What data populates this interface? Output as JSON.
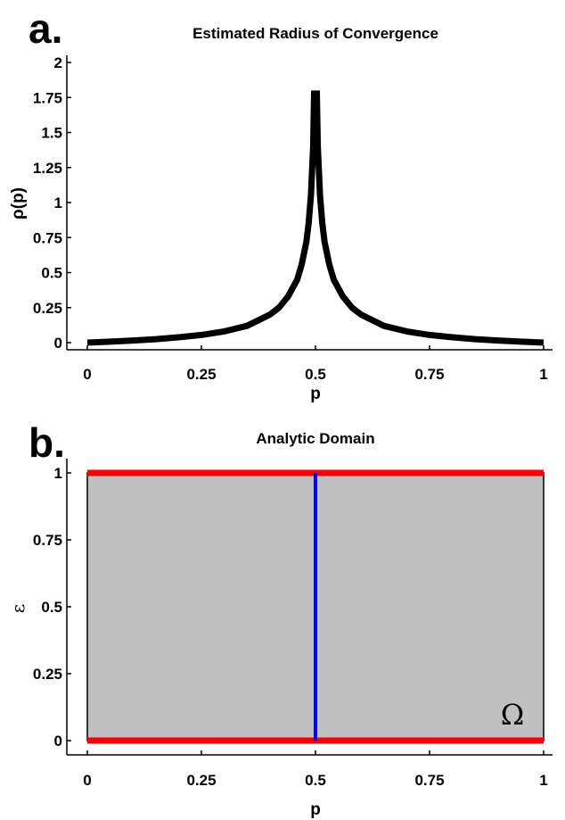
{
  "chart_data": [
    {
      "panel": "a.",
      "type": "line",
      "title": "Estimated Radius of Convergence",
      "xlabel": "p",
      "ylabel": "ρ(p)",
      "xlim": [
        0,
        1
      ],
      "ylim": [
        0,
        2
      ],
      "xticks": [
        "0",
        "0.25",
        "0.5",
        "0.75",
        "1"
      ],
      "yticks": [
        "0",
        "0.25",
        "0.5",
        "0.75",
        "1",
        "1.25",
        "1.5",
        "1.75",
        "2"
      ],
      "grid": false,
      "color": "#000000",
      "x": [
        0,
        0.05,
        0.1,
        0.15,
        0.2,
        0.25,
        0.3,
        0.35,
        0.4,
        0.42,
        0.44,
        0.46,
        0.47,
        0.48,
        0.485,
        0.49,
        0.495,
        0.497,
        0.503,
        0.505,
        0.51,
        0.515,
        0.52,
        0.53,
        0.54,
        0.56,
        0.58,
        0.6,
        0.65,
        0.7,
        0.75,
        0.8,
        0.85,
        0.9,
        0.95,
        1
      ],
      "y": [
        0,
        0.007,
        0.015,
        0.025,
        0.038,
        0.055,
        0.08,
        0.12,
        0.2,
        0.25,
        0.33,
        0.45,
        0.56,
        0.72,
        0.85,
        1.05,
        1.4,
        1.8,
        1.8,
        1.4,
        1.05,
        0.85,
        0.72,
        0.56,
        0.45,
        0.33,
        0.25,
        0.2,
        0.12,
        0.08,
        0.055,
        0.038,
        0.025,
        0.015,
        0.007,
        0
      ]
    },
    {
      "panel": "b.",
      "type": "area",
      "title": "Analytic Domain",
      "xlabel": "p",
      "ylabel": "ε",
      "xlim": [
        0,
        1
      ],
      "ylim": [
        0,
        1
      ],
      "xticks": [
        "0",
        "0.25",
        "0.5",
        "0.75",
        "1"
      ],
      "yticks": [
        "0",
        "0.25",
        "0.5",
        "0.75",
        "1"
      ],
      "grid": false,
      "region_label": "Ω",
      "region_color": "#c0c0c0",
      "boundary_color": "#ff0000",
      "singular_line": {
        "x": 0.5,
        "color": "#0000ff"
      }
    }
  ]
}
